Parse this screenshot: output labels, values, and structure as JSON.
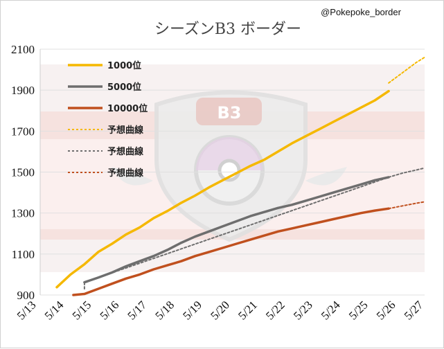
{
  "colors": {
    "gold": "#f5b800",
    "gray": "#6e6e6e",
    "rust": "#c0501e",
    "grid": "#e0e0e0",
    "band": "#f6d6cf",
    "emblem": "#ececec"
  },
  "chart_data": {
    "type": "line",
    "title": "シーズンB3 ボーダー",
    "credit": "@Pokepoke_border",
    "emblem_text": "B3",
    "ylim": [
      900,
      2100
    ],
    "y_ticks": [
      900,
      1100,
      1300,
      1500,
      1700,
      1900,
      2100
    ],
    "x_ticks": [
      "5/13",
      "5/14",
      "5/15",
      "5/16",
      "5/17",
      "5/18",
      "5/19",
      "5/20",
      "5/21",
      "5/22",
      "5/23",
      "5/24",
      "5/25",
      "5/26",
      "5/27"
    ],
    "xlim": [
      5.4,
      19.3
    ],
    "grid": true,
    "legend_position": "top-left",
    "series": [
      {
        "name": "1000位",
        "color": "#f5b800",
        "style": "solid",
        "x": [
          6.0,
          6.5,
          7.0,
          7.5,
          8.0,
          8.5,
          9.0,
          9.5,
          10.0,
          10.5,
          11.0,
          11.5,
          12.0,
          12.5,
          13.0,
          13.5,
          14.0,
          14.5,
          15.0,
          15.5,
          16.0,
          16.5,
          17.0,
          17.5,
          18.0
        ],
        "y": [
          938,
          1000,
          1050,
          1110,
          1150,
          1195,
          1230,
          1275,
          1310,
          1350,
          1385,
          1425,
          1460,
          1495,
          1530,
          1560,
          1600,
          1640,
          1675,
          1710,
          1745,
          1780,
          1815,
          1850,
          1895
        ]
      },
      {
        "name": "5000位",
        "color": "#6e6e6e",
        "style": "solid",
        "x": [
          7.0,
          7.5,
          8.0,
          8.5,
          9.0,
          9.5,
          10.0,
          10.5,
          11.0,
          11.5,
          12.0,
          12.5,
          13.0,
          13.5,
          14.0,
          14.5,
          15.0,
          15.5,
          16.0,
          16.5,
          17.0,
          17.5,
          18.0
        ],
        "y": [
          962,
          985,
          1010,
          1040,
          1065,
          1090,
          1120,
          1155,
          1185,
          1210,
          1235,
          1260,
          1285,
          1305,
          1325,
          1340,
          1360,
          1380,
          1400,
          1420,
          1440,
          1460,
          1475
        ]
      },
      {
        "name": "10000位",
        "color": "#c0501e",
        "style": "solid",
        "x": [
          6.6,
          7.0,
          7.5,
          8.0,
          8.5,
          9.0,
          9.5,
          10.0,
          10.5,
          11.0,
          11.5,
          12.0,
          12.5,
          13.0,
          13.5,
          14.0,
          14.5,
          15.0,
          15.5,
          16.0,
          16.5,
          17.0,
          17.5,
          18.0
        ],
        "y": [
          900,
          905,
          930,
          955,
          980,
          1000,
          1025,
          1045,
          1065,
          1090,
          1110,
          1130,
          1150,
          1170,
          1190,
          1210,
          1225,
          1240,
          1255,
          1270,
          1285,
          1300,
          1312,
          1322
        ]
      },
      {
        "name": "予想曲線",
        "color": "#f5b800",
        "style": "dotted",
        "x": [
          18.0,
          18.5,
          19.0,
          19.3
        ],
        "y": [
          1935,
          1985,
          2035,
          2060
        ]
      },
      {
        "name": "予想曲線",
        "color": "#6e6e6e",
        "style": "dotted",
        "x": [
          7.0,
          7.0,
          18.0,
          18.5,
          19.0,
          19.3
        ],
        "y": [
          930,
          962,
          1475,
          1495,
          1510,
          1520
        ]
      },
      {
        "name": "予想曲線",
        "color": "#c0501e",
        "style": "dotted",
        "x": [
          18.0,
          18.5,
          19.0,
          19.3
        ],
        "y": [
          1322,
          1335,
          1348,
          1355
        ]
      }
    ]
  }
}
